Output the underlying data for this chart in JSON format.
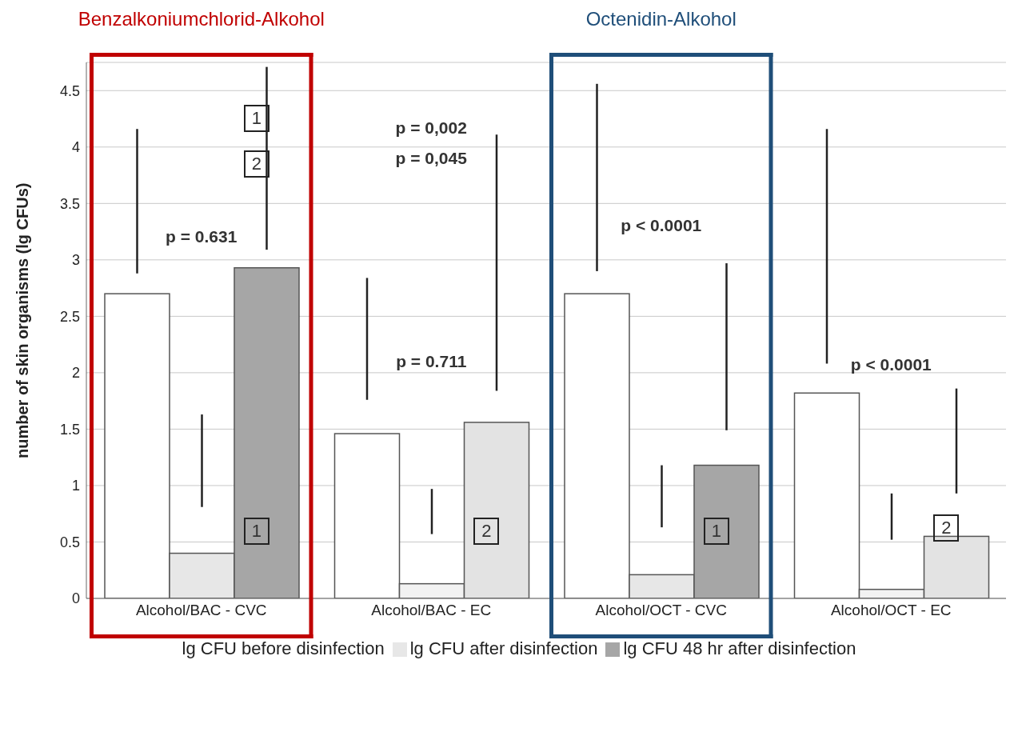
{
  "chart_data": {
    "type": "bar",
    "ylabel": "number of skin organisms (lg CFUs)",
    "categories": [
      "Alcohol/BAC - CVC",
      "Alcohol/BAC - EC",
      "Alcohol/OCT - CVC",
      "Alcohol/OCT - EC"
    ],
    "series": [
      {
        "name": "lg CFU before disinfection",
        "color": "#ffffff",
        "colors": [
          "#ffffff",
          "#ffffff",
          "#ffffff",
          "#ffffff"
        ],
        "values": [
          2.7,
          1.46,
          2.7,
          1.82
        ],
        "errors": [
          [
            2.88,
            4.16
          ],
          [
            1.76,
            2.84
          ],
          [
            2.9,
            4.56
          ],
          [
            2.08,
            4.16
          ]
        ]
      },
      {
        "name": "lg CFU after disinfection",
        "color": "#e7e7e7",
        "colors": [
          "#e7e7e7",
          "#f2f2f2",
          "#e7e7e7",
          "#f2f2f2"
        ],
        "values": [
          0.4,
          0.13,
          0.21,
          0.08
        ],
        "errors": [
          [
            0.81,
            1.63
          ],
          [
            0.57,
            0.97
          ],
          [
            0.63,
            1.18
          ],
          [
            0.52,
            0.93
          ]
        ]
      },
      {
        "name": "lg CFU 48 hr after disinfection",
        "color": "#a6a6a6",
        "colors": [
          "#a6a6a6",
          "#e3e3e3",
          "#a6a6a6",
          "#e3e3e3"
        ],
        "values": [
          2.93,
          1.56,
          1.18,
          0.55
        ],
        "errors": [
          [
            3.09,
            4.71
          ],
          [
            1.84,
            4.11
          ],
          [
            1.49,
            2.97
          ],
          [
            0.93,
            1.86
          ]
        ]
      }
    ],
    "ylim": [
      0,
      4.75
    ],
    "yticks": [
      0,
      0.5,
      1,
      1.5,
      2,
      2.5,
      3,
      3.5,
      4,
      4.5
    ],
    "grid": "y",
    "legend": "bottom",
    "annotations": [
      "Benzalkoniumchlorid-Alkohol",
      "Octenidin-Alkohol",
      "p = 0.631",
      "1",
      "2",
      "1",
      "p = 0,002",
      "p = 0,045",
      "p = 0.711",
      "2",
      "p < 0.0001",
      "1",
      "p < 0.0001",
      "2"
    ]
  }
}
